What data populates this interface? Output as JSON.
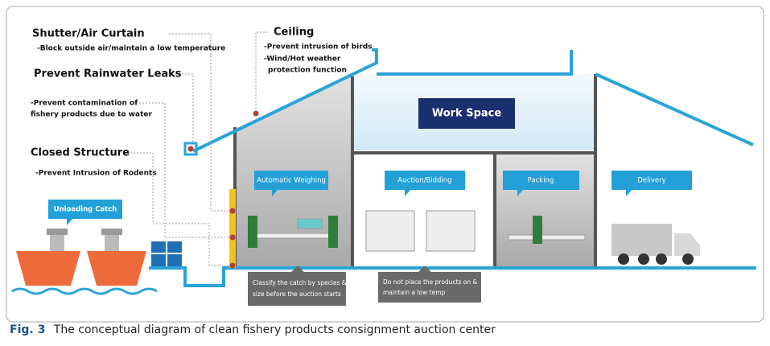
{
  "annotations": [
    {
      "title": "Shutter/Air Curtain",
      "lines": [
        "-Block outside air/maintain a low temperature"
      ]
    },
    {
      "title": "Prevent Rainwater Leaks",
      "lines": [
        "-Prevent contamination of",
        "fishery products due to water"
      ]
    },
    {
      "title": "Closed Structure",
      "lines": [
        "-Prevent Intrusion of Rodents"
      ]
    },
    {
      "title": "Ceiling",
      "lines": [
        "-Prevent intrusion of birds",
        "-Wind/Hot weather",
        "protection function"
      ]
    }
  ],
  "work_space": "Work Space",
  "areas": [
    "Automatic Weighing",
    "Auction/Bidding",
    "Packing",
    "Delivery"
  ],
  "unloading": "Unloading Catch",
  "notes": [
    [
      "Classify the catch by species &",
      "size before the auction starts"
    ],
    [
      "Do not place the products on &",
      "maintain a low temp"
    ]
  ],
  "caption": {
    "label": "Fig. 3",
    "text": "The conceptual diagram of clean fishery products consignment auction center"
  }
}
